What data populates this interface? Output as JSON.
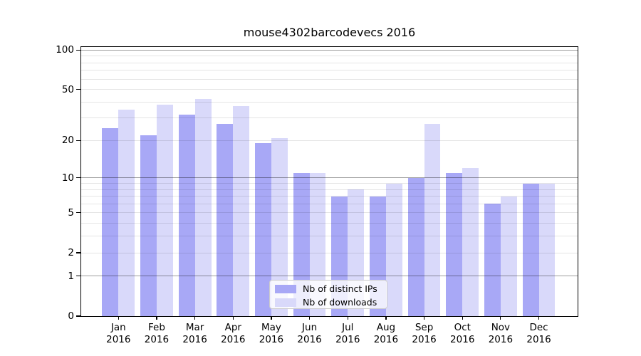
{
  "title": "mouse4302barcodevecs 2016",
  "chart_data": {
    "type": "bar",
    "title": "mouse4302barcodevecs 2016",
    "categories": [
      "Jan 2016",
      "Feb 2016",
      "Mar 2016",
      "Apr 2016",
      "May 2016",
      "Jun 2016",
      "Jul 2016",
      "Aug 2016",
      "Sep 2016",
      "Oct 2016",
      "Nov 2016",
      "Dec 2016"
    ],
    "series": [
      {
        "name": "Nb of distinct IPs",
        "color": "#a8a8f6",
        "values": [
          25,
          22,
          32,
          27,
          19,
          11,
          7,
          7,
          10,
          11,
          6,
          9
        ]
      },
      {
        "name": "Nb of downloads",
        "color": "#d9d9fa",
        "values": [
          35,
          38,
          42,
          37,
          21,
          11,
          8,
          9,
          27,
          12,
          7,
          9
        ]
      }
    ],
    "xlabel": "",
    "ylabel": "",
    "yscale": "log(1+x)",
    "ylim": [
      0,
      105
    ],
    "ytick_values": [
      0,
      1,
      2,
      5,
      10,
      20,
      50,
      100
    ],
    "ytick_labels": [
      "0",
      "1",
      "2",
      "5",
      "10",
      "20",
      "50",
      "100"
    ],
    "grid": {
      "on": true,
      "minor_values": [
        2,
        3,
        4,
        5,
        6,
        7,
        8,
        9,
        20,
        30,
        40,
        50,
        60,
        70,
        80,
        90
      ],
      "major_values": [
        1,
        10,
        100
      ]
    },
    "legend": {
      "position": "lower center",
      "items": [
        "Nb of distinct IPs",
        "Nb of downloads"
      ]
    }
  },
  "colors": {
    "bar_distinct_ips": "#a8a8f6",
    "bar_downloads": "#d9d9fa",
    "grid_minor": "rgba(0,0,0,0.10)",
    "grid_major": "rgba(0,0,0,0.38)",
    "axis": "#000000",
    "legend_border": "#cccccc",
    "legend_background": "rgba(255,255,255,0.8)"
  }
}
